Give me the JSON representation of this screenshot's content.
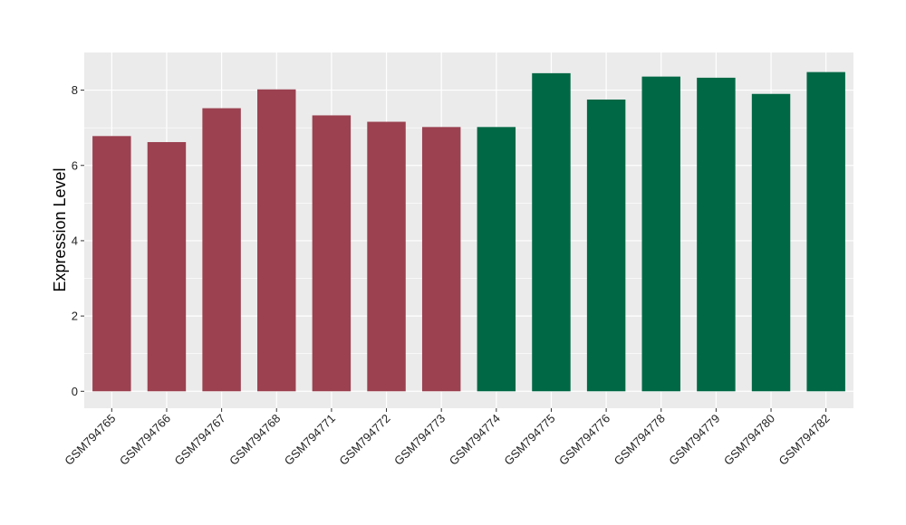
{
  "chart_data": {
    "type": "bar",
    "title": "",
    "xlabel": "",
    "ylabel": "Expression Level",
    "ylim": [
      -0.45,
      9.0
    ],
    "yticks": [
      0,
      2,
      4,
      6,
      8
    ],
    "grid": true,
    "categories": [
      "GSM794765",
      "GSM794766",
      "GSM794767",
      "GSM794768",
      "GSM794771",
      "GSM794772",
      "GSM794773",
      "GSM794774",
      "GSM794775",
      "GSM794776",
      "GSM794778",
      "GSM794779",
      "GSM794780",
      "GSM794782"
    ],
    "values": [
      6.78,
      6.62,
      7.52,
      8.02,
      7.33,
      7.16,
      7.02,
      7.02,
      8.45,
      7.75,
      8.36,
      8.33,
      7.9,
      8.48
    ],
    "groups": [
      "a",
      "a",
      "a",
      "a",
      "a",
      "a",
      "a",
      "b",
      "b",
      "b",
      "b",
      "b",
      "b",
      "b"
    ],
    "group_colors": {
      "a": "#9b4150",
      "b": "#006845"
    },
    "panel_background": "#ebebeb",
    "grid_color": "#ffffff"
  }
}
